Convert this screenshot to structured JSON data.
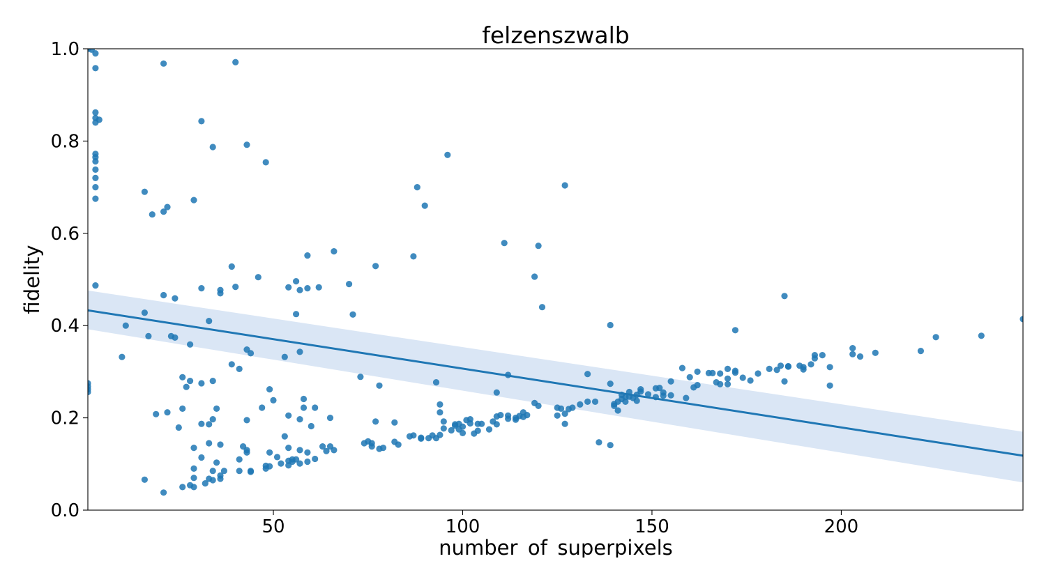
{
  "chart_data": {
    "type": "scatter",
    "title": "felzenszwalb",
    "xlabel": "number_of_superpixels",
    "ylabel": "fidelity",
    "xlim": [
      1,
      248
    ],
    "ylim": [
      0.0,
      1.0
    ],
    "xticks": [
      50,
      100,
      150,
      200
    ],
    "yticks": [
      0.0,
      0.2,
      0.4,
      0.6,
      0.8,
      1.0
    ],
    "xtick_labels": [
      "50",
      "100",
      "150",
      "200"
    ],
    "ytick_labels": [
      "0.0",
      "0.2",
      "0.4",
      "0.6",
      "0.8",
      "1.0"
    ],
    "grid": false,
    "legend": "none",
    "colors": {
      "points": "#1f77b4",
      "line": "#1f77b4",
      "band": "#aec7e8"
    },
    "regression": {
      "x": [
        1,
        248
      ],
      "y": [
        0.433,
        0.118
      ],
      "ci_lower": [
        0.392,
        0.06
      ],
      "ci_upper": [
        0.476,
        0.17
      ]
    },
    "points": [
      [
        1,
        1.0
      ],
      [
        2,
        0.998
      ],
      [
        3,
        0.99
      ],
      [
        3,
        0.958
      ],
      [
        3,
        0.862
      ],
      [
        3,
        0.85
      ],
      [
        3,
        0.84
      ],
      [
        4,
        0.846
      ],
      [
        3,
        0.772
      ],
      [
        3,
        0.765
      ],
      [
        3,
        0.756
      ],
      [
        3,
        0.738
      ],
      [
        3,
        0.72
      ],
      [
        3,
        0.7
      ],
      [
        3,
        0.675
      ],
      [
        3,
        0.487
      ],
      [
        1,
        0.275
      ],
      [
        1,
        0.268
      ],
      [
        1,
        0.262
      ],
      [
        1,
        0.256
      ],
      [
        10,
        0.332
      ],
      [
        11,
        0.4
      ],
      [
        16,
        0.69
      ],
      [
        16,
        0.428
      ],
      [
        16,
        0.066
      ],
      [
        17,
        0.377
      ],
      [
        18,
        0.641
      ],
      [
        19,
        0.208
      ],
      [
        21,
        0.968
      ],
      [
        21,
        0.647
      ],
      [
        21,
        0.466
      ],
      [
        21,
        0.038
      ],
      [
        22,
        0.657
      ],
      [
        22,
        0.212
      ],
      [
        23,
        0.377
      ],
      [
        24,
        0.374
      ],
      [
        24,
        0.459
      ],
      [
        25,
        0.179
      ],
      [
        26,
        0.288
      ],
      [
        26,
        0.22
      ],
      [
        26,
        0.05
      ],
      [
        27,
        0.267
      ],
      [
        28,
        0.359
      ],
      [
        28,
        0.28
      ],
      [
        28,
        0.054
      ],
      [
        29,
        0.672
      ],
      [
        29,
        0.135
      ],
      [
        29,
        0.09
      ],
      [
        29,
        0.07
      ],
      [
        29,
        0.05
      ],
      [
        31,
        0.843
      ],
      [
        31,
        0.481
      ],
      [
        31,
        0.275
      ],
      [
        31,
        0.187
      ],
      [
        31,
        0.114
      ],
      [
        32,
        0.058
      ],
      [
        33,
        0.41
      ],
      [
        33,
        0.186
      ],
      [
        33,
        0.145
      ],
      [
        33,
        0.068
      ],
      [
        34,
        0.787
      ],
      [
        34,
        0.28
      ],
      [
        34,
        0.197
      ],
      [
        34,
        0.085
      ],
      [
        34,
        0.065
      ],
      [
        35,
        0.22
      ],
      [
        35,
        0.103
      ],
      [
        36,
        0.477
      ],
      [
        36,
        0.47
      ],
      [
        36,
        0.142
      ],
      [
        36,
        0.075
      ],
      [
        36,
        0.068
      ],
      [
        37,
        0.085
      ],
      [
        39,
        0.528
      ],
      [
        39,
        0.316
      ],
      [
        40,
        0.971
      ],
      [
        40,
        0.484
      ],
      [
        41,
        0.306
      ],
      [
        41,
        0.11
      ],
      [
        41,
        0.085
      ],
      [
        42,
        0.138
      ],
      [
        43,
        0.792
      ],
      [
        43,
        0.348
      ],
      [
        43,
        0.195
      ],
      [
        43,
        0.13
      ],
      [
        43,
        0.125
      ],
      [
        44,
        0.34
      ],
      [
        44,
        0.085
      ],
      [
        44,
        0.083
      ],
      [
        46,
        0.505
      ],
      [
        47,
        0.222
      ],
      [
        48,
        0.754
      ],
      [
        48,
        0.09
      ],
      [
        48,
        0.096
      ],
      [
        49,
        0.262
      ],
      [
        49,
        0.125
      ],
      [
        49,
        0.095
      ],
      [
        50,
        0.238
      ],
      [
        51,
        0.115
      ],
      [
        52,
        0.101
      ],
      [
        53,
        0.332
      ],
      [
        53,
        0.16
      ],
      [
        54,
        0.483
      ],
      [
        54,
        0.205
      ],
      [
        54,
        0.135
      ],
      [
        54,
        0.107
      ],
      [
        54,
        0.097
      ],
      [
        55,
        0.11
      ],
      [
        55,
        0.105
      ],
      [
        56,
        0.496
      ],
      [
        56,
        0.425
      ],
      [
        56,
        0.11
      ],
      [
        57,
        0.477
      ],
      [
        57,
        0.343
      ],
      [
        57,
        0.197
      ],
      [
        57,
        0.13
      ],
      [
        57,
        0.101
      ],
      [
        58,
        0.241
      ],
      [
        58,
        0.222
      ],
      [
        59,
        0.481
      ],
      [
        59,
        0.552
      ],
      [
        59,
        0.125
      ],
      [
        59,
        0.105
      ],
      [
        60,
        0.182
      ],
      [
        61,
        0.222
      ],
      [
        61,
        0.111
      ],
      [
        62,
        0.483
      ],
      [
        63,
        0.138
      ],
      [
        64,
        0.128
      ],
      [
        65,
        0.2
      ],
      [
        65,
        0.138
      ],
      [
        66,
        0.561
      ],
      [
        66,
        0.13
      ],
      [
        70,
        0.49
      ],
      [
        71,
        0.424
      ],
      [
        73,
        0.289
      ],
      [
        74,
        0.145
      ],
      [
        75,
        0.149
      ],
      [
        76,
        0.145
      ],
      [
        76,
        0.138
      ],
      [
        77,
        0.529
      ],
      [
        77,
        0.192
      ],
      [
        78,
        0.27
      ],
      [
        78,
        0.133
      ],
      [
        79,
        0.135
      ],
      [
        82,
        0.19
      ],
      [
        82,
        0.148
      ],
      [
        83,
        0.142
      ],
      [
        86,
        0.16
      ],
      [
        87,
        0.55
      ],
      [
        87,
        0.162
      ],
      [
        88,
        0.7
      ],
      [
        89,
        0.157
      ],
      [
        89,
        0.155
      ],
      [
        90,
        0.66
      ],
      [
        91,
        0.156
      ],
      [
        92,
        0.162
      ],
      [
        93,
        0.277
      ],
      [
        93,
        0.156
      ],
      [
        94,
        0.229
      ],
      [
        94,
        0.212
      ],
      [
        94,
        0.163
      ],
      [
        95,
        0.192
      ],
      [
        95,
        0.177
      ],
      [
        96,
        0.77
      ],
      [
        97,
        0.173
      ],
      [
        98,
        0.186
      ],
      [
        98,
        0.183
      ],
      [
        99,
        0.175
      ],
      [
        99,
        0.187
      ],
      [
        100,
        0.181
      ],
      [
        100,
        0.167
      ],
      [
        101,
        0.195
      ],
      [
        102,
        0.188
      ],
      [
        102,
        0.197
      ],
      [
        103,
        0.166
      ],
      [
        104,
        0.187
      ],
      [
        104,
        0.172
      ],
      [
        105,
        0.187
      ],
      [
        107,
        0.175
      ],
      [
        108,
        0.192
      ],
      [
        109,
        0.255
      ],
      [
        109,
        0.186
      ],
      [
        109,
        0.203
      ],
      [
        110,
        0.206
      ],
      [
        111,
        0.579
      ],
      [
        112,
        0.293
      ],
      [
        112,
        0.205
      ],
      [
        112,
        0.198
      ],
      [
        114,
        0.196
      ],
      [
        114,
        0.2
      ],
      [
        115,
        0.204
      ],
      [
        116,
        0.202
      ],
      [
        116,
        0.212
      ],
      [
        117,
        0.206
      ],
      [
        119,
        0.506
      ],
      [
        119,
        0.232
      ],
      [
        120,
        0.573
      ],
      [
        120,
        0.226
      ],
      [
        121,
        0.44
      ],
      [
        125,
        0.222
      ],
      [
        125,
        0.205
      ],
      [
        126,
        0.22
      ],
      [
        127,
        0.704
      ],
      [
        127,
        0.209
      ],
      [
        127,
        0.187
      ],
      [
        128,
        0.219
      ],
      [
        129,
        0.222
      ],
      [
        131,
        0.229
      ],
      [
        133,
        0.295
      ],
      [
        133,
        0.235
      ],
      [
        135,
        0.235
      ],
      [
        136,
        0.147
      ],
      [
        139,
        0.401
      ],
      [
        139,
        0.274
      ],
      [
        139,
        0.141
      ],
      [
        140,
        0.23
      ],
      [
        140,
        0.226
      ],
      [
        141,
        0.216
      ],
      [
        141,
        0.235
      ],
      [
        142,
        0.25
      ],
      [
        142,
        0.241
      ],
      [
        143,
        0.245
      ],
      [
        143,
        0.235
      ],
      [
        144,
        0.246
      ],
      [
        144,
        0.256
      ],
      [
        145,
        0.243
      ],
      [
        146,
        0.25
      ],
      [
        146,
        0.237
      ],
      [
        147,
        0.257
      ],
      [
        147,
        0.262
      ],
      [
        149,
        0.251
      ],
      [
        151,
        0.245
      ],
      [
        151,
        0.264
      ],
      [
        152,
        0.265
      ],
      [
        153,
        0.255
      ],
      [
        153,
        0.248
      ],
      [
        155,
        0.249
      ],
      [
        155,
        0.279
      ],
      [
        158,
        0.308
      ],
      [
        159,
        0.243
      ],
      [
        160,
        0.288
      ],
      [
        161,
        0.266
      ],
      [
        162,
        0.271
      ],
      [
        162,
        0.3
      ],
      [
        165,
        0.297
      ],
      [
        166,
        0.297
      ],
      [
        167,
        0.277
      ],
      [
        168,
        0.273
      ],
      [
        168,
        0.296
      ],
      [
        170,
        0.273
      ],
      [
        170,
        0.285
      ],
      [
        170,
        0.306
      ],
      [
        172,
        0.302
      ],
      [
        172,
        0.298
      ],
      [
        172,
        0.39
      ],
      [
        174,
        0.287
      ],
      [
        176,
        0.281
      ],
      [
        178,
        0.296
      ],
      [
        181,
        0.306
      ],
      [
        183,
        0.304
      ],
      [
        184,
        0.313
      ],
      [
        185,
        0.464
      ],
      [
        185,
        0.279
      ],
      [
        186,
        0.312
      ],
      [
        186,
        0.311
      ],
      [
        189,
        0.313
      ],
      [
        190,
        0.31
      ],
      [
        190,
        0.305
      ],
      [
        192,
        0.316
      ],
      [
        193,
        0.336
      ],
      [
        193,
        0.329
      ],
      [
        195,
        0.336
      ],
      [
        197,
        0.31
      ],
      [
        197,
        0.27
      ],
      [
        203,
        0.351
      ],
      [
        203,
        0.338
      ],
      [
        205,
        0.333
      ],
      [
        209,
        0.341
      ],
      [
        221,
        0.345
      ],
      [
        225,
        0.375
      ],
      [
        237,
        0.378
      ],
      [
        248,
        0.414
      ]
    ]
  }
}
